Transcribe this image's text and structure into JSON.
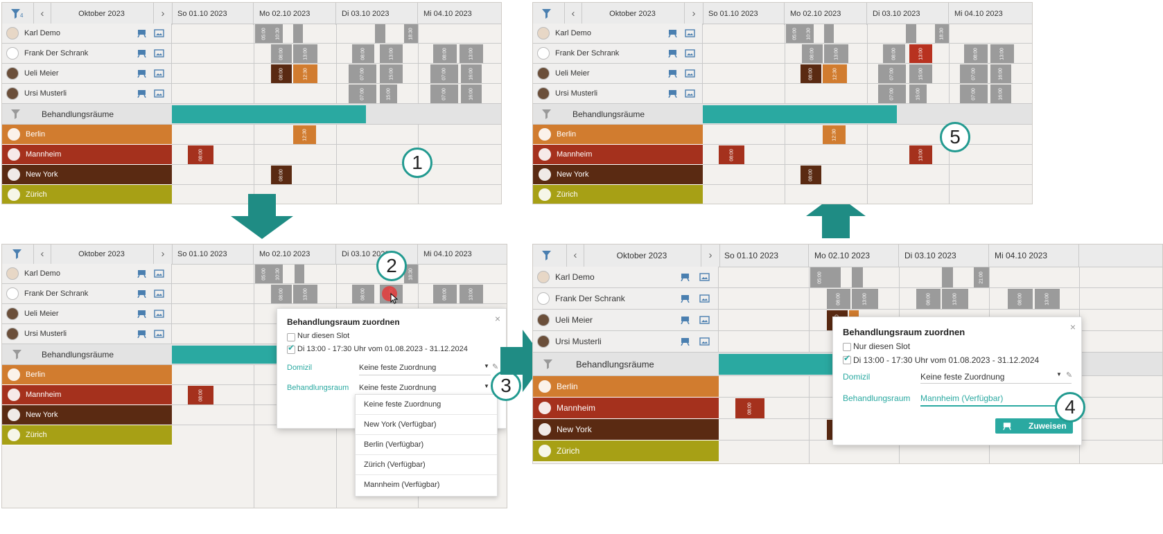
{
  "colors": {
    "teal": "#2aa9a1",
    "berlin": "#d17c2f",
    "mannheim": "#a5311d",
    "newyork": "#5a2a12",
    "zurich": "#a7a015",
    "slot": "#9b9b9b",
    "orange_slot": "#d17c2f",
    "dark_slot": "#5a2a12",
    "red_slot": "#b83220"
  },
  "calendar": {
    "month": "Oktober 2023",
    "filter_count": "4",
    "days": [
      "So 01.10 2023",
      "Mo 02.10 2023",
      "Di 03.10 2023",
      "Mi 04.10 2023"
    ],
    "people": [
      "Karl Demo",
      "Frank Der Schrank",
      "Ueli  Meier",
      "Ursi Musterli"
    ],
    "group_title": "Behandlungsräume",
    "rooms": [
      "Berlin",
      "Mannheim",
      "New York",
      "Zürich"
    ]
  },
  "slot_times": {
    "a": "05:00",
    "b": "10:30",
    "c": "08:00",
    "d": "12:00",
    "e": "13:00",
    "f": "17:30",
    "g": "12:30",
    "h": "17:00",
    "i": "07:00",
    "j": "11:00",
    "k": "15:00",
    "l": "16:00",
    "m": "18:30",
    "n": "21:00",
    "o": "08:00",
    "p": "13:00"
  },
  "dialog": {
    "title": "Behandlungsraum zuordnen",
    "option1": "Nur diesen Slot",
    "option2": "Di 13:00 - 17:30 Uhr vom 01.08.2023 - 31.12.2024",
    "domizil_label": "Domizil",
    "domizil_value": "Keine feste Zuordnung",
    "room_label": "Behandlungsraum",
    "room_value": "Keine feste Zuordnung",
    "room_value_selected": "Mannheim (Verfügbar)",
    "assign_button": "Zuweisen",
    "close": "×"
  },
  "dropdown": [
    "Keine feste Zuordnung",
    "New York (Verfügbar)",
    "Berlin (Verfügbar)",
    "Zürich (Verfügbar)",
    "Mannheim (Verfügbar)"
  ],
  "steps": [
    "1",
    "2",
    "3",
    "4",
    "5"
  ],
  "icons": [
    "filter-icon",
    "chevron-left-icon",
    "chevron-right-icon",
    "easel-icon",
    "image-icon",
    "close-icon",
    "caret-down-icon",
    "pencil-icon",
    "arrow-down-icon",
    "arrow-up-icon",
    "arrow-right-icon",
    "cursor-icon"
  ]
}
